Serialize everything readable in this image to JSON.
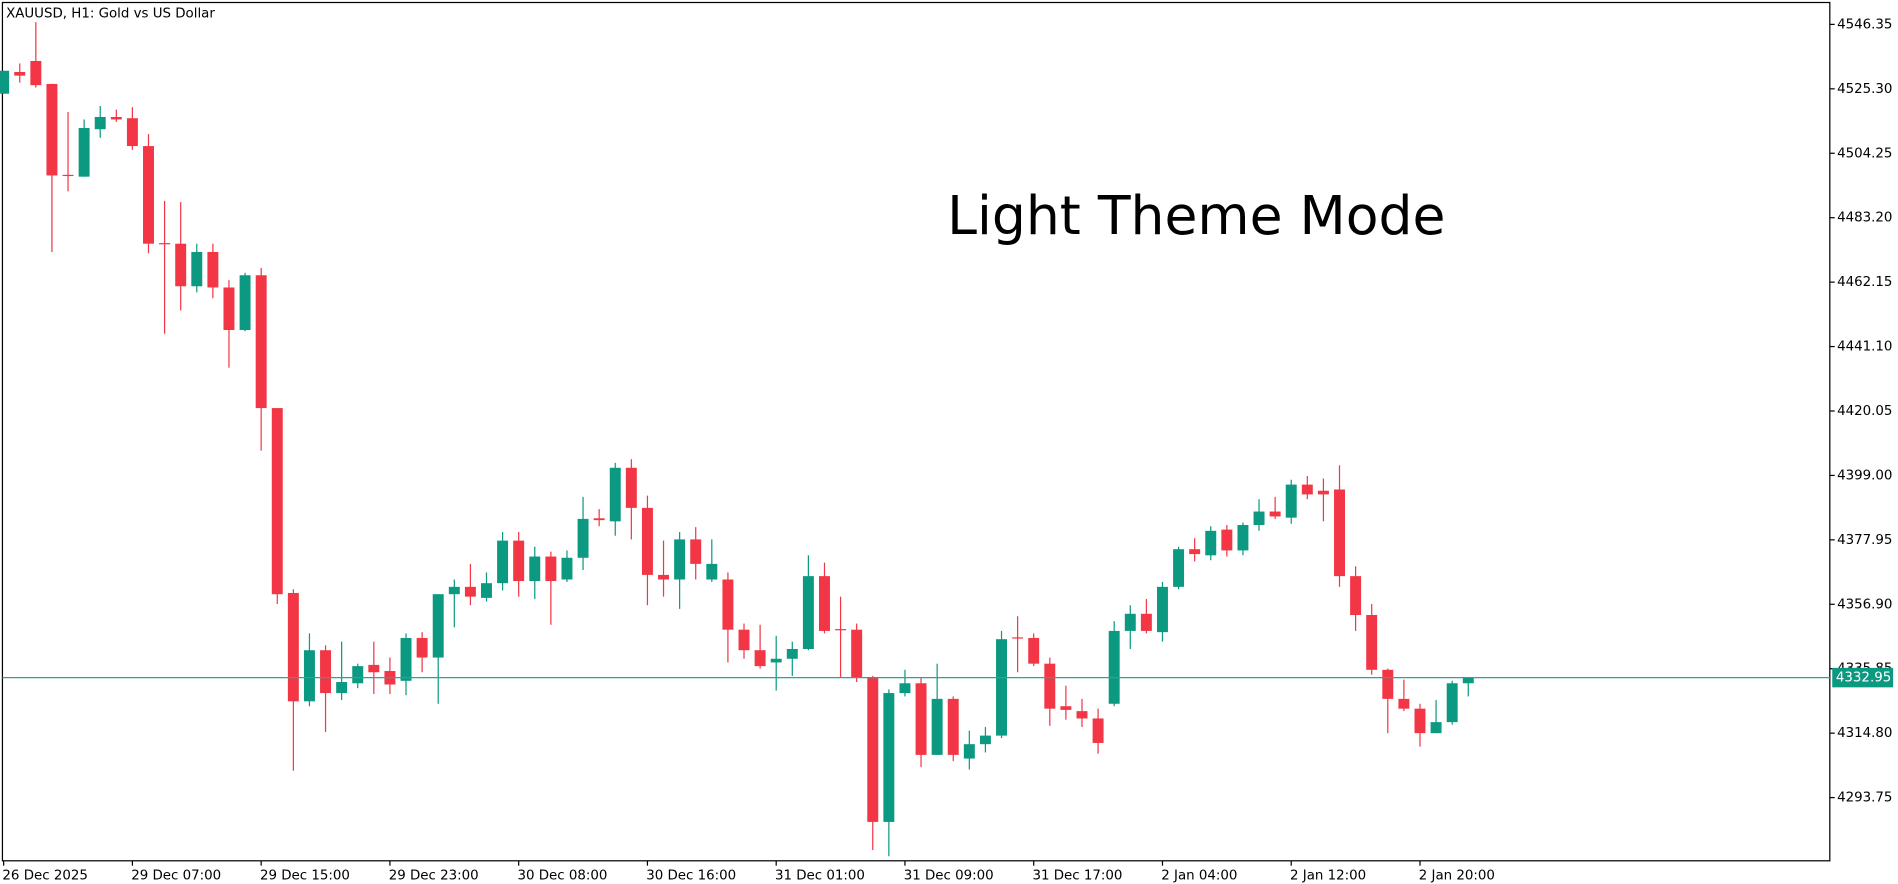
{
  "chart_data": {
    "type": "candlestick",
    "title": "XAUUSD, H1:  Gold vs US Dollar",
    "annotation": "Light Theme Mode",
    "up_color": "#0b9981",
    "down_color": "#f23645",
    "line_color": "#26a69a",
    "categories": [
      "26 Dec 2025",
      null,
      null,
      null,
      null,
      null,
      null,
      null,
      "29 Dec 07:00",
      null,
      null,
      null,
      null,
      null,
      null,
      null,
      "29 Dec 15:00",
      null,
      null,
      null,
      null,
      null,
      null,
      null,
      "29 Dec 23:00",
      null,
      null,
      null,
      null,
      null,
      null,
      null,
      "30 Dec 08:00",
      null,
      null,
      null,
      null,
      null,
      null,
      null,
      "30 Dec 16:00",
      null,
      null,
      null,
      null,
      null,
      null,
      null,
      "31 Dec 01:00",
      null,
      null,
      null,
      null,
      null,
      null,
      null,
      "31 Dec 09:00",
      null,
      null,
      null,
      null,
      null,
      null,
      null,
      "31 Dec 17:00",
      null,
      null,
      null,
      null,
      null,
      null,
      null,
      "2 Jan 04:00",
      null,
      null,
      null,
      null,
      null,
      null,
      null,
      "2 Jan 12:00",
      null,
      null,
      null,
      null,
      null,
      null,
      null,
      "2 Jan 20:00",
      null,
      null,
      null
    ],
    "open": [
      4523.7,
      4530.8,
      4534.4,
      4526.9,
      4497.2,
      4496.6,
      4512.1,
      4516.1,
      4515.7,
      4506.6,
      4474.9,
      4474.7,
      4460.8,
      4472.0,
      4460.4,
      4446.5,
      4464.4,
      4421.0,
      4360.6,
      4325.2,
      4341.9,
      4327.9,
      4331.1,
      4337.1,
      4335.1,
      4331.9,
      4345.9,
      4339.5,
      4360.2,
      4362.6,
      4359.0,
      4363.8,
      4377.7,
      4364.5,
      4372.5,
      4365.0,
      4372.1,
      4385.0,
      4384.0,
      4401.5,
      4388.4,
      4366.5,
      4365.0,
      4378.1,
      4365.0,
      4365.0,
      4348.6,
      4341.9,
      4337.9,
      4339.1,
      4342.3,
      4366.1,
      4348.8,
      4348.6,
      4333.1,
      4285.8,
      4327.9,
      4331.1,
      4307.7,
      4326.0,
      4306.5,
      4311.2,
      4314.0,
      4346.1,
      4345.9,
      4337.5,
      4323.6,
      4322.0,
      4319.6,
      4324.4,
      4348.2,
      4353.8,
      4347.8,
      4362.6,
      4374.9,
      4372.9,
      4381.3,
      4374.5,
      4382.8,
      4387.2,
      4385.2,
      4396.0,
      4394.0,
      4394.4,
      4366.1,
      4353.4,
      4335.5,
      4326.0,
      4322.8,
      4314.8,
      4318.4,
      4331.1
    ],
    "high": [
      4531.2,
      4533.6,
      4547.1,
      4526.9,
      4517.7,
      4515.3,
      4519.7,
      4518.5,
      4519.3,
      4510.5,
      4488.7,
      4488.3,
      4474.7,
      4474.7,
      4462.8,
      4465.2,
      4466.8,
      4421.0,
      4361.8,
      4347.4,
      4343.5,
      4344.7,
      4337.5,
      4344.7,
      4339.5,
      4347.4,
      4347.8,
      4360.2,
      4365.0,
      4370.1,
      4367.3,
      4380.5,
      4380.5,
      4375.7,
      4374.1,
      4374.5,
      4392.0,
      4388.0,
      4403.1,
      4404.3,
      4392.4,
      4377.7,
      4380.5,
      4382.1,
      4378.1,
      4367.3,
      4350.6,
      4350.2,
      4346.6,
      4344.7,
      4372.9,
      4370.5,
      4359.4,
      4350.6,
      4333.5,
      4329.1,
      4335.5,
      4333.1,
      4337.5,
      4326.8,
      4315.6,
      4316.8,
      4348.2,
      4353.0,
      4347.4,
      4339.5,
      4330.3,
      4326.0,
      4322.8,
      4351.4,
      4356.6,
      4358.6,
      4364.2,
      4375.7,
      4378.5,
      4382.4,
      4382.8,
      4383.6,
      4391.2,
      4392.0,
      4397.6,
      4398.8,
      4398.0,
      4402.3,
      4369.3,
      4357.0,
      4335.9,
      4332.3,
      4324.4,
      4325.6,
      4331.9,
      4333.1
    ],
    "low": [
      4523.7,
      4527.3,
      4525.7,
      4472.0,
      4491.8,
      4496.6,
      4509.3,
      4514.5,
      4505.4,
      4471.6,
      4445.3,
      4452.9,
      4458.8,
      4456.9,
      4434.2,
      4446.1,
      4407.1,
      4357.0,
      4302.5,
      4323.6,
      4315.2,
      4325.6,
      4329.5,
      4327.6,
      4327.6,
      4327.2,
      4334.7,
      4324.4,
      4349.4,
      4356.6,
      4357.8,
      4361.4,
      4359.4,
      4358.6,
      4350.2,
      4364.2,
      4368.1,
      4382.4,
      4379.3,
      4378.1,
      4356.6,
      4359.4,
      4355.4,
      4365.0,
      4364.2,
      4337.9,
      4339.1,
      4335.9,
      4328.7,
      4333.5,
      4341.9,
      4347.4,
      4333.1,
      4331.5,
      4276.6,
      4274.6,
      4326.8,
      4303.7,
      4307.7,
      4305.7,
      4302.9,
      4308.5,
      4313.2,
      4334.7,
      4336.7,
      4317.2,
      4319.2,
      4316.8,
      4308.1,
      4323.6,
      4342.3,
      4347.4,
      4344.7,
      4361.8,
      4370.9,
      4371.3,
      4372.5,
      4372.9,
      4380.9,
      4384.8,
      4383.2,
      4391.2,
      4384.0,
      4362.6,
      4348.2,
      4333.9,
      4314.8,
      4322.0,
      4310.4,
      4314.8,
      4317.6,
      4326.8
    ],
    "close": [
      4531.2,
      4529.6,
      4526.5,
      4497.0,
      4497.0,
      4512.5,
      4516.1,
      4515.3,
      4506.6,
      4474.7,
      4474.7,
      4460.8,
      4472.0,
      4460.4,
      4446.5,
      4464.4,
      4421.0,
      4360.2,
      4325.2,
      4341.9,
      4327.9,
      4331.5,
      4336.7,
      4334.7,
      4330.7,
      4345.9,
      4339.5,
      4360.2,
      4362.6,
      4359.4,
      4363.8,
      4377.7,
      4364.5,
      4372.5,
      4364.5,
      4372.1,
      4384.8,
      4384.4,
      4401.5,
      4388.4,
      4366.5,
      4365.0,
      4378.1,
      4370.1,
      4370.1,
      4348.6,
      4341.9,
      4336.7,
      4339.1,
      4342.3,
      4366.1,
      4348.2,
      4348.6,
      4333.1,
      4285.8,
      4327.9,
      4331.1,
      4307.7,
      4326.0,
      4307.7,
      4311.2,
      4314.0,
      4345.5,
      4345.9,
      4337.5,
      4322.8,
      4322.4,
      4319.6,
      4311.6,
      4348.2,
      4353.8,
      4348.2,
      4362.6,
      4374.9,
      4373.3,
      4380.9,
      4374.5,
      4382.8,
      4387.2,
      4385.6,
      4396.0,
      4392.8,
      4392.8,
      4366.1,
      4353.4,
      4335.5,
      4326.0,
      4322.8,
      4314.8,
      4318.4,
      4331.1,
      4332.95
    ],
    "last_price": 4332.95,
    "ylim": [
      4273.1,
      4553.5
    ],
    "yticks": [
      4546.35,
      {
        "value": 4525.3,
        "label": "4525.30"
      },
      4504.25,
      {
        "value": 4483.2,
        "label": "4483.20"
      },
      4462.15,
      {
        "value": 4441.1,
        "label": "4441.10"
      },
      4420.05,
      {
        "value": 4399,
        "label": "4399.00"
      },
      4377.95,
      {
        "value": 4356.9,
        "label": "4356.90"
      },
      4335.85,
      {
        "value": 4314.8,
        "label": "4314.80"
      },
      4293.75
    ]
  }
}
